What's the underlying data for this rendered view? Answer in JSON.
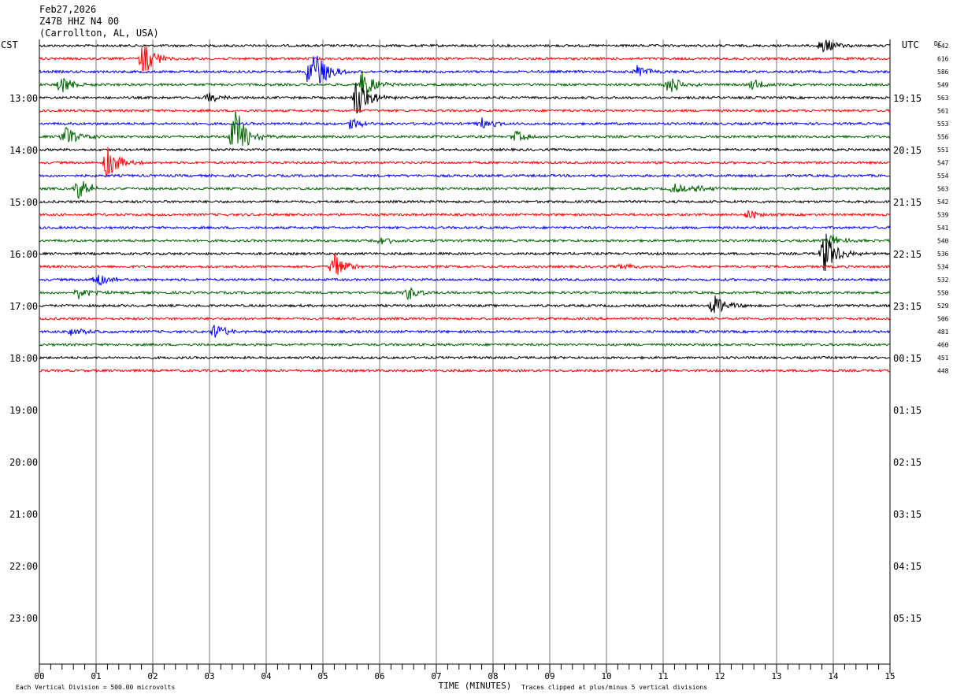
{
  "header": {
    "date": "Feb27,2026",
    "station": "Z47B HHZ N4 00",
    "location": "(Carrollton, AL, USA)"
  },
  "left_timezone": "CST",
  "right_timezone": "UTC",
  "dc_label": "DC",
  "chart_data": {
    "type": "line",
    "title": "",
    "xlabel": "TIME (MINUTES)",
    "x_ticks": [
      "00",
      "01",
      "02",
      "03",
      "04",
      "05",
      "06",
      "07",
      "08",
      "09",
      "10",
      "11",
      "12",
      "13",
      "14",
      "15"
    ],
    "xlim": [
      0,
      15
    ],
    "left_hour_labels": [
      "13:00",
      "14:00",
      "15:00",
      "16:00",
      "17:00",
      "18:00",
      "19:00",
      "20:00",
      "21:00",
      "22:00",
      "23:00"
    ],
    "right_hour_labels": [
      "19:15",
      "20:15",
      "21:15",
      "22:15",
      "23:15",
      "00:15",
      "01:15",
      "02:15",
      "03:15",
      "04:15",
      "05:15"
    ],
    "trace_colors": [
      "#000000",
      "#ff0000",
      "#0000ff",
      "#006400"
    ],
    "dc_offsets": [
      "642",
      "616",
      "586",
      "549",
      "563",
      "561",
      "553",
      "556",
      "551",
      "547",
      "554",
      "563",
      "542",
      "539",
      "541",
      "540",
      "536",
      "534",
      "532",
      "550",
      "529",
      "506",
      "481",
      "460",
      "451",
      "448"
    ],
    "events": [
      {
        "trace": 0,
        "minute": 13.8,
        "amp": 0.8
      },
      {
        "trace": 1,
        "minute": 1.85,
        "amp": 1.4
      },
      {
        "trace": 2,
        "minute": 4.8,
        "amp": 2.2
      },
      {
        "trace": 2,
        "minute": 10.55,
        "amp": 0.6
      },
      {
        "trace": 3,
        "minute": 0.4,
        "amp": 0.8
      },
      {
        "trace": 3,
        "minute": 5.7,
        "amp": 1.2
      },
      {
        "trace": 3,
        "minute": 11.1,
        "amp": 0.8
      },
      {
        "trace": 3,
        "minute": 12.6,
        "amp": 0.5
      },
      {
        "trace": 4,
        "minute": 5.6,
        "amp": 1.6
      },
      {
        "trace": 4,
        "minute": 3.0,
        "amp": 0.4
      },
      {
        "trace": 6,
        "minute": 5.5,
        "amp": 0.5
      },
      {
        "trace": 6,
        "minute": 7.8,
        "amp": 0.5
      },
      {
        "trace": 7,
        "minute": 0.45,
        "amp": 0.9
      },
      {
        "trace": 7,
        "minute": 3.45,
        "amp": 2.4
      },
      {
        "trace": 7,
        "minute": 8.4,
        "amp": 0.5
      },
      {
        "trace": 9,
        "minute": 1.2,
        "amp": 1.4
      },
      {
        "trace": 11,
        "minute": 0.7,
        "amp": 0.9
      },
      {
        "trace": 11,
        "minute": 11.2,
        "amp": 0.4
      },
      {
        "trace": 11,
        "minute": 11.6,
        "amp": 0.4
      },
      {
        "trace": 13,
        "minute": 12.5,
        "amp": 0.4
      },
      {
        "trace": 15,
        "minute": 6.05,
        "amp": 0.4
      },
      {
        "trace": 15,
        "minute": 13.95,
        "amp": 0.6
      },
      {
        "trace": 16,
        "minute": 13.85,
        "amp": 1.8
      },
      {
        "trace": 17,
        "minute": 5.2,
        "amp": 1.2
      },
      {
        "trace": 17,
        "minute": 10.3,
        "amp": 0.4
      },
      {
        "trace": 18,
        "minute": 1.0,
        "amp": 0.7
      },
      {
        "trace": 19,
        "minute": 0.7,
        "amp": 0.5
      },
      {
        "trace": 19,
        "minute": 6.5,
        "amp": 0.6
      },
      {
        "trace": 20,
        "minute": 11.9,
        "amp": 1.0
      },
      {
        "trace": 22,
        "minute": 0.55,
        "amp": 0.5
      },
      {
        "trace": 22,
        "minute": 3.1,
        "amp": 0.7
      }
    ]
  },
  "footer": {
    "scale_note": "Each Vertical Division =  500.00 microvolts",
    "clip_note": "Traces clipped at plus/minus 5 vertical divisions"
  }
}
